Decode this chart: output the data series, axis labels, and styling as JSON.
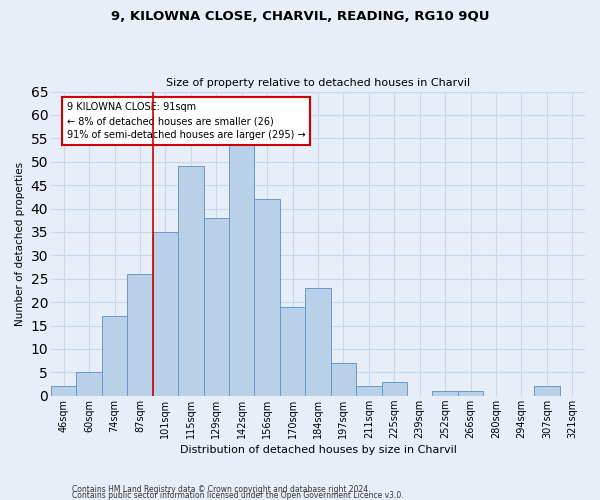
{
  "title1": "9, KILOWNA CLOSE, CHARVIL, READING, RG10 9QU",
  "title2": "Size of property relative to detached houses in Charvil",
  "xlabel": "Distribution of detached houses by size in Charvil",
  "ylabel": "Number of detached properties",
  "footnote1": "Contains HM Land Registry data © Crown copyright and database right 2024.",
  "footnote2": "Contains public sector information licensed under the Open Government Licence v3.0.",
  "categories": [
    "46sqm",
    "60sqm",
    "74sqm",
    "87sqm",
    "101sqm",
    "115sqm",
    "129sqm",
    "142sqm",
    "156sqm",
    "170sqm",
    "184sqm",
    "197sqm",
    "211sqm",
    "225sqm",
    "239sqm",
    "252sqm",
    "266sqm",
    "280sqm",
    "294sqm",
    "307sqm",
    "321sqm"
  ],
  "values": [
    2,
    5,
    17,
    26,
    35,
    49,
    38,
    54,
    42,
    19,
    23,
    7,
    2,
    3,
    0,
    1,
    1,
    0,
    0,
    2,
    0
  ],
  "bar_color": "#b8d0e8",
  "bar_edge_color": "#6699cc",
  "grid_color": "#c8d8ec",
  "bg_color": "#e8eef8",
  "annotation_text1": "9 KILOWNA CLOSE: 91sqm",
  "annotation_text2": "← 8% of detached houses are smaller (26)",
  "annotation_text3": "91% of semi-detached houses are larger (295) →",
  "annotation_box_color": "#ffffff",
  "annotation_border_color": "#cc0000",
  "red_line_color": "#cc0000",
  "ylim": [
    0,
    65
  ],
  "yticks": [
    0,
    5,
    10,
    15,
    20,
    25,
    30,
    35,
    40,
    45,
    50,
    55,
    60,
    65
  ],
  "red_line_x": 3.5,
  "title1_fontsize": 9.5,
  "title2_fontsize": 8,
  "xlabel_fontsize": 8,
  "ylabel_fontsize": 7.5,
  "tick_fontsize": 7,
  "annot_fontsize": 7,
  "footnote_fontsize": 5.5
}
